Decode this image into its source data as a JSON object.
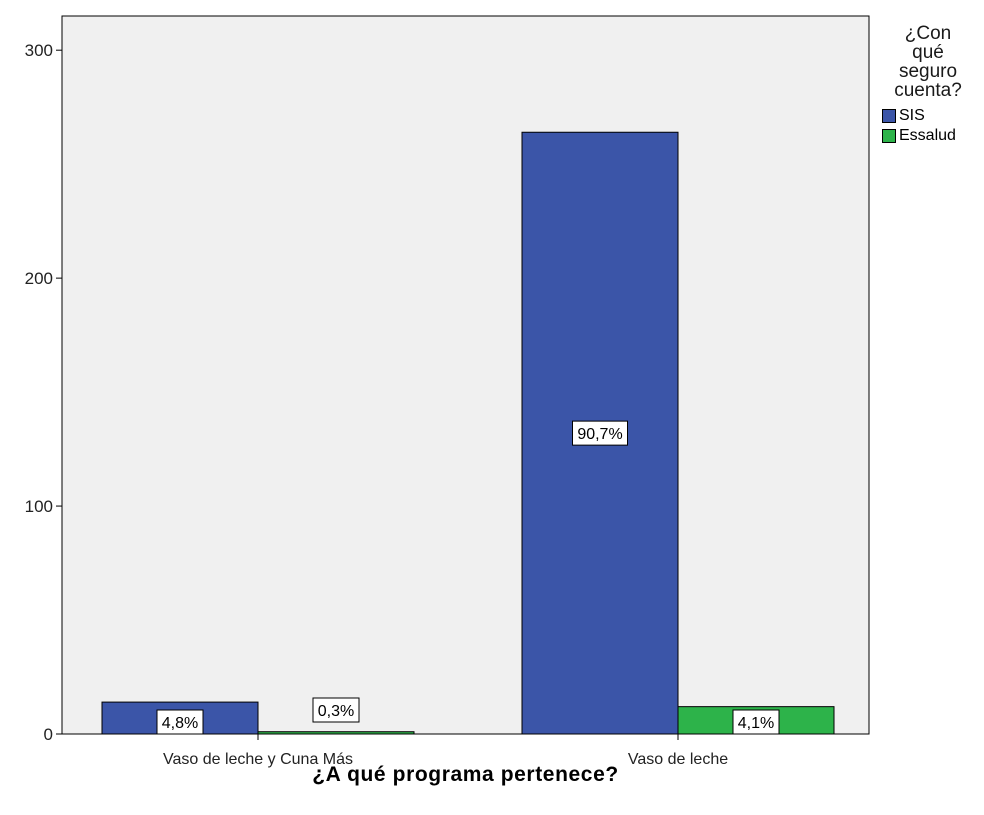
{
  "chart_data": {
    "type": "bar",
    "xlabel": "¿A qué programa pertenece?",
    "ylabel": "",
    "categories": [
      "Vaso de leche y Cuna Más",
      "Vaso de leche"
    ],
    "series": [
      {
        "name": "SIS",
        "color": "#3b55a8",
        "values": [
          14,
          264
        ],
        "labels": [
          "4,8%",
          "90,7%"
        ]
      },
      {
        "name": "Essalud",
        "color": "#2db34a",
        "values": [
          1,
          12
        ],
        "labels": [
          "0,3%",
          "4,1%"
        ]
      }
    ],
    "yticks": [
      0,
      100,
      200,
      300
    ],
    "ylim": [
      0,
      315
    ],
    "grid": false,
    "plot_background": "#f0f0f0",
    "legend": {
      "title_lines": [
        "¿Con",
        "qué",
        "seguro",
        "cuenta?"
      ],
      "placement": "right"
    }
  }
}
